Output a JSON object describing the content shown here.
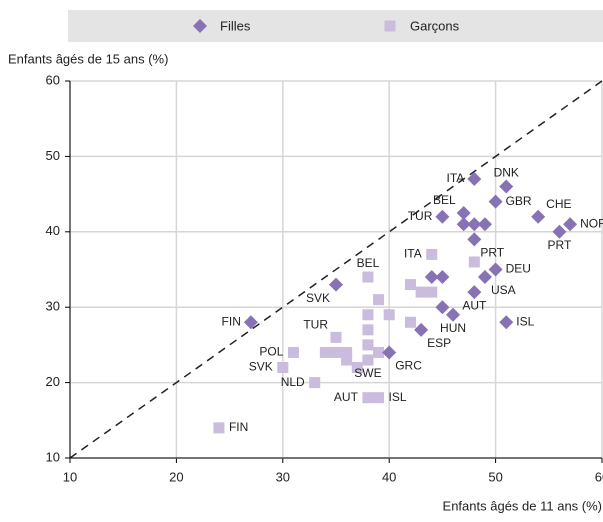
{
  "chart_data": {
    "type": "scatter",
    "xlabel": "Enfants âgés de 11 ans (%)",
    "ylabel": "Enfants âgés de 15 ans (%)",
    "xlim": [
      10,
      60
    ],
    "ylim": [
      10,
      60
    ],
    "xticks": [
      10,
      20,
      30,
      40,
      50,
      60
    ],
    "yticks": [
      10,
      20,
      30,
      40,
      50,
      60
    ],
    "grid": true,
    "legend": "top",
    "series": [
      {
        "name": "Filles",
        "color": "#8773b3",
        "marker": "diamond",
        "x": [
          27,
          35,
          48,
          51,
          50,
          54,
          57,
          56,
          45,
          47,
          47,
          48,
          49,
          48,
          50,
          49,
          48,
          51,
          46,
          45,
          44,
          45,
          43,
          40
        ],
        "y": [
          28,
          33,
          47,
          46,
          44,
          42,
          41,
          40,
          42,
          42.5,
          41,
          41,
          41,
          39,
          35,
          34,
          32,
          28,
          29,
          30,
          34,
          34,
          27,
          24
        ],
        "labels": [
          "FIN",
          "SVK",
          "ITA",
          "DNK",
          "GBR",
          "CHE",
          "NOR",
          "PRT",
          "TUR",
          "BEL",
          null,
          null,
          null,
          "PRT",
          "DEU",
          "USA",
          "AUT",
          "ISL",
          "HUN",
          null,
          null,
          null,
          "ESP",
          "GRC"
        ]
      },
      {
        "name": "Garçons",
        "color": "#c9bcdc",
        "marker": "square",
        "x": [
          24,
          30,
          31,
          33,
          35,
          35,
          36,
          36,
          37,
          38,
          38,
          38,
          38,
          38,
          39,
          39,
          40,
          42,
          43,
          44,
          44,
          48,
          42,
          38,
          39,
          34
        ],
        "y": [
          14,
          22,
          24,
          20,
          26,
          24,
          24,
          23,
          22,
          23,
          34,
          29,
          27,
          25,
          24,
          31,
          29,
          33,
          32,
          32,
          37,
          36,
          28,
          18,
          18,
          24
        ],
        "labels": [
          "FIN",
          "SVK",
          "POL",
          "NLD",
          "TUR",
          null,
          null,
          null,
          null,
          "SWE",
          "BEL",
          null,
          null,
          null,
          null,
          null,
          null,
          null,
          null,
          null,
          "ITA",
          null,
          null,
          "AUT",
          "ISL",
          null
        ]
      }
    ]
  }
}
